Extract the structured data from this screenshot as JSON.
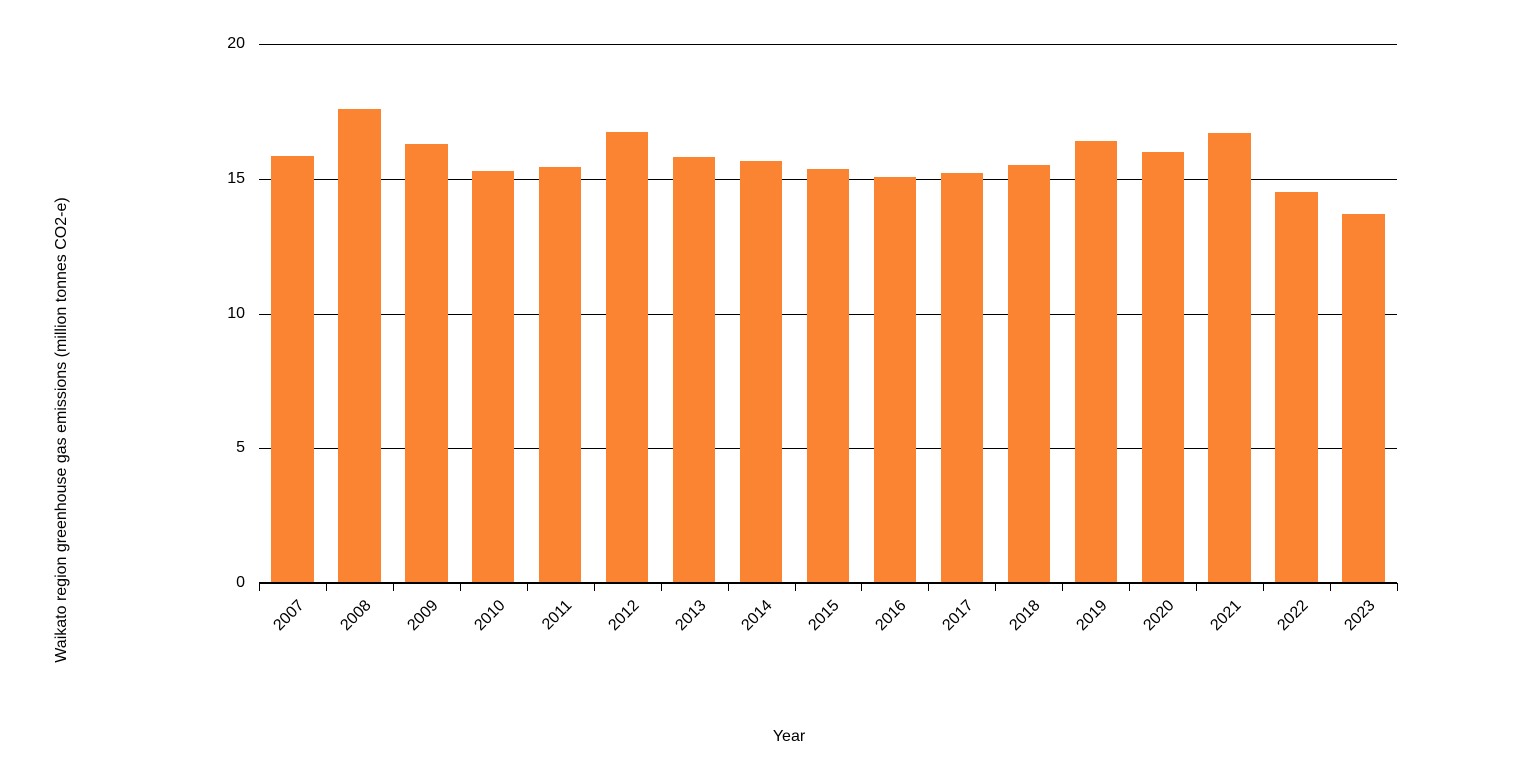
{
  "chart_data": {
    "type": "bar",
    "title": "",
    "categories": [
      "2007",
      "2008",
      "2009",
      "2010",
      "2011",
      "2012",
      "2013",
      "2014",
      "2015",
      "2016",
      "2017",
      "2018",
      "2019",
      "2020",
      "2021",
      "2022",
      "2023"
    ],
    "values": [
      15.85,
      17.6,
      16.3,
      15.3,
      15.45,
      16.75,
      15.8,
      15.65,
      15.35,
      15.05,
      15.2,
      15.5,
      16.4,
      16.0,
      16.7,
      14.5,
      13.7
    ],
    "xlabel": "Year",
    "ylabel": "Waikato region greenhouse gas emissions (million tonnes CO2-e)",
    "ylim": [
      0,
      20
    ],
    "yticks": [
      0,
      5,
      10,
      15,
      20
    ],
    "grid": true,
    "legend_position": "none",
    "colors": {
      "bar": "#FB8433",
      "gridline": "#000000",
      "axis": "#000000",
      "text": "#000000",
      "background": "#FFFFFF"
    }
  }
}
